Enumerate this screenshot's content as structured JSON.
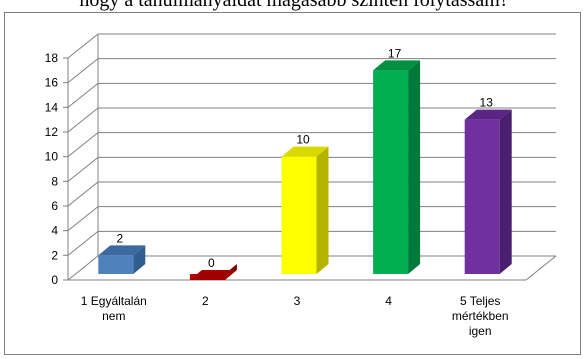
{
  "title": "hogy a tanulmányaidat magasabb szinten folytassam?",
  "chart_data": {
    "type": "bar",
    "categories": [
      [
        "1 Egyáltalán",
        "nem"
      ],
      [
        "2"
      ],
      [
        "3"
      ],
      [
        "4"
      ],
      [
        "5 Teljes",
        "mértékben",
        "igen"
      ]
    ],
    "values": [
      2,
      0,
      10,
      17,
      13
    ],
    "data_labels": [
      "2",
      "0",
      "10",
      "17",
      "13"
    ],
    "yticks": [
      "0",
      "2",
      "4",
      "6",
      "8",
      "10",
      "12",
      "14",
      "16",
      "18"
    ],
    "ylim": [
      0,
      18
    ],
    "grid": true,
    "three_d": true,
    "colors": [
      "#4f81bd",
      "#c00000",
      "#ffff00",
      "#00b050",
      "#7030a0"
    ],
    "side_colors": [
      "#2f5f8f",
      "#800000",
      "#b3b300",
      "#007a3a",
      "#4a1f70"
    ],
    "top_colors": [
      "#3a6aa0",
      "#a00000",
      "#d9d900",
      "#009040",
      "#5a2585"
    ]
  }
}
